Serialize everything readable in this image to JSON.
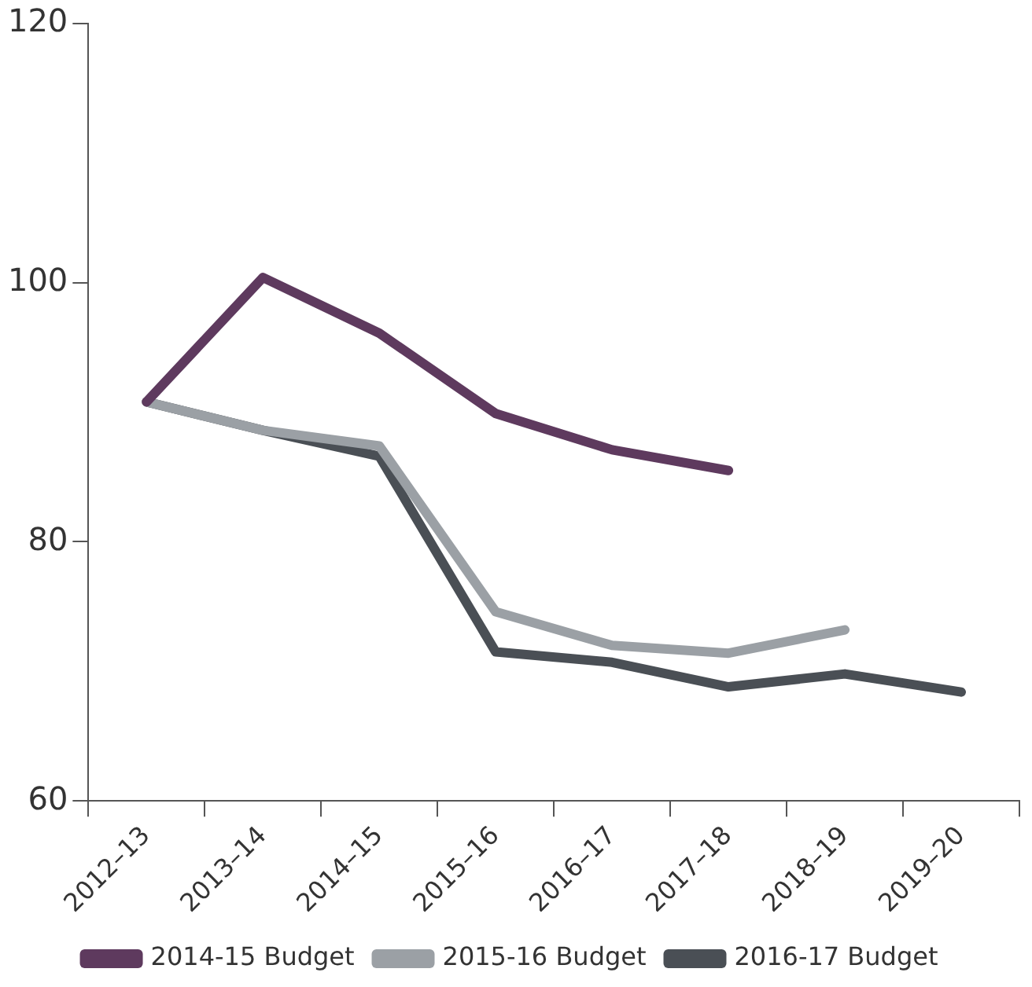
{
  "chart_data": {
    "type": "line",
    "categories": [
      "2012–13",
      "2013–14",
      "2014–15",
      "2015–16",
      "2016–17",
      "2017–18",
      "2018–19",
      "2019–20"
    ],
    "series": [
      {
        "name": "2014-15 Budget",
        "color": "#5e3a5e",
        "values": [
          90.8,
          100.4,
          96.1,
          89.9,
          87.1,
          85.5,
          null,
          null
        ]
      },
      {
        "name": "2015-16 Budget",
        "color": "#9ba0a5",
        "values": [
          90.8,
          88.6,
          87.4,
          74.6,
          72.0,
          71.4,
          73.2,
          null
        ]
      },
      {
        "name": "2016-17 Budget",
        "color": "#4a4f55",
        "values": [
          90.8,
          88.6,
          86.6,
          71.5,
          70.7,
          68.8,
          69.8,
          68.4
        ]
      }
    ],
    "ylim": [
      60,
      120
    ],
    "yticks": [
      60,
      80,
      100,
      120
    ],
    "grid": false,
    "legend": "bottom",
    "marker": "none",
    "line_style": "solid"
  }
}
